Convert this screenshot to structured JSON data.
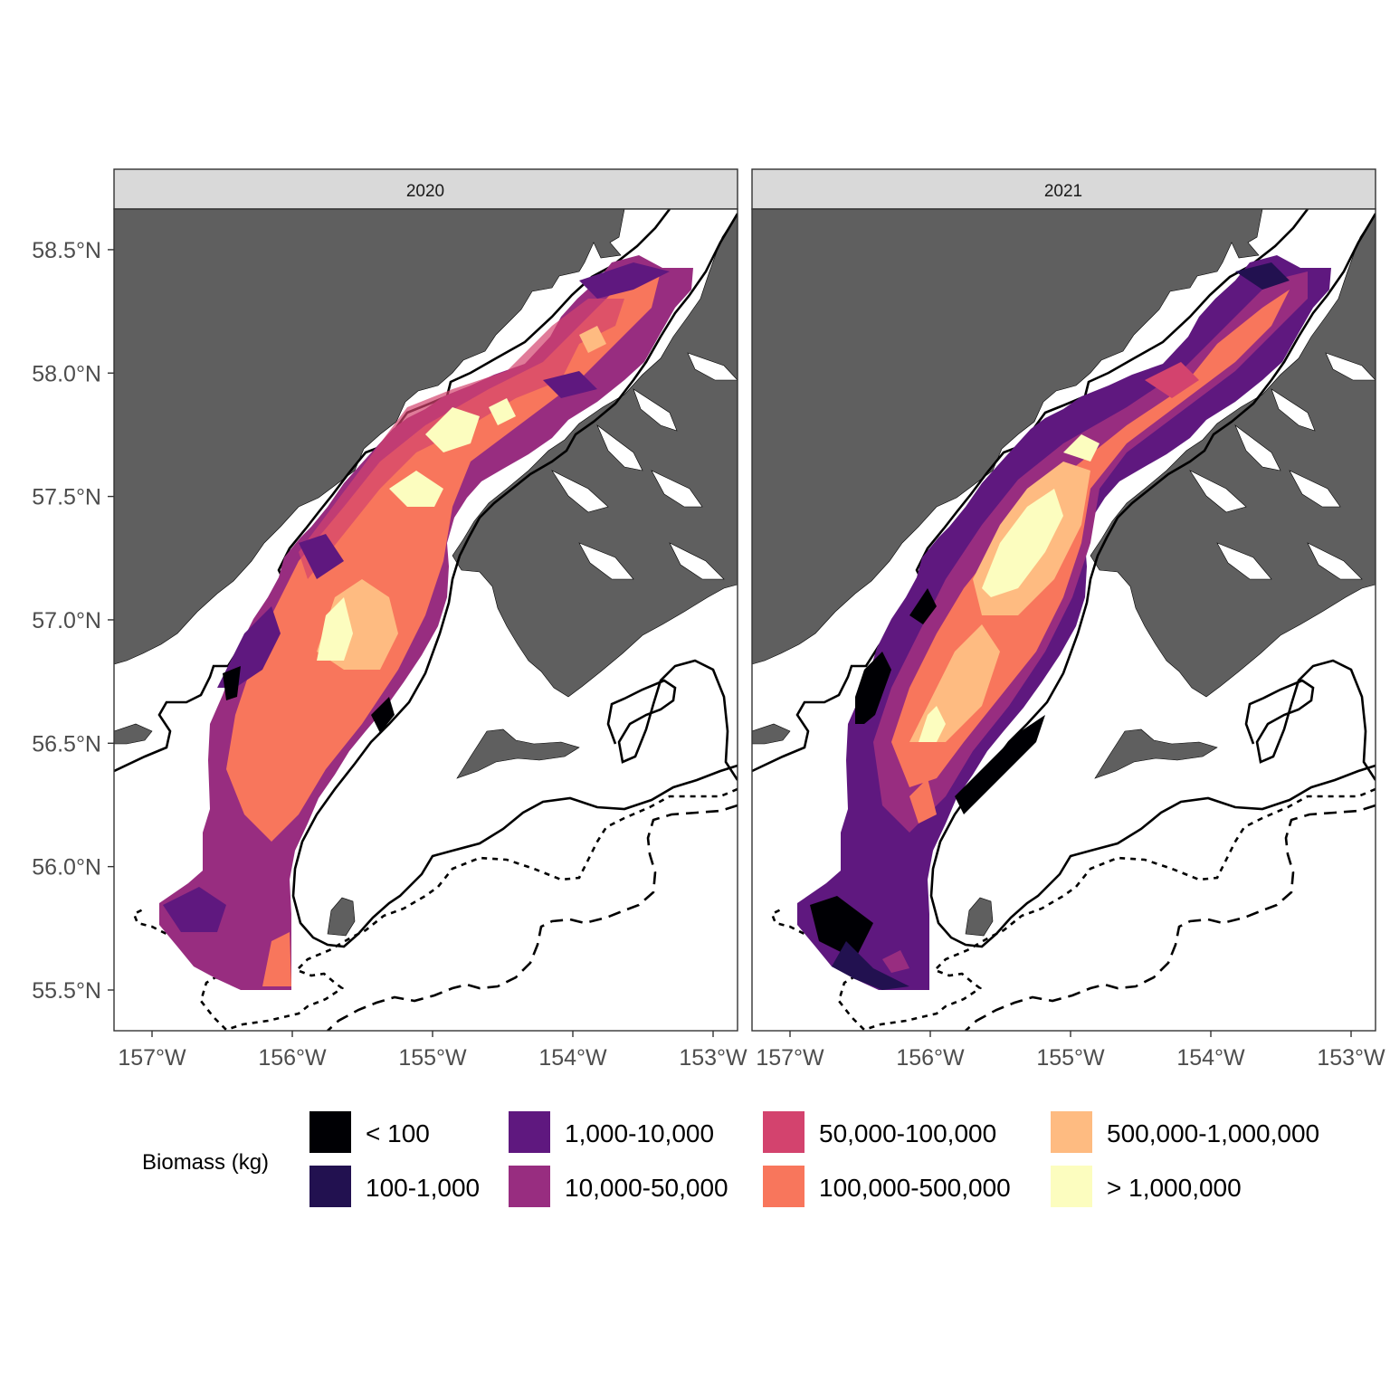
{
  "panels": [
    {
      "label": "2020"
    },
    {
      "label": "2021"
    }
  ],
  "axes": {
    "x_ticks": [
      "157°W",
      "156°W",
      "155°W",
      "154°W",
      "153°W"
    ],
    "x_values": [
      -157,
      -156,
      -155,
      -154,
      -153
    ],
    "y_ticks": [
      "58.5°N",
      "58.0°N",
      "57.5°N",
      "57.0°N",
      "56.5°N",
      "56.0°N",
      "55.5°N"
    ],
    "y_values": [
      58.5,
      58.0,
      57.5,
      57.0,
      56.5,
      56.0,
      55.5
    ]
  },
  "legend": {
    "title": "Biomass (kg)",
    "items": [
      {
        "label": "< 100",
        "color": "#000004"
      },
      {
        "label": "100-1,000",
        "color": "#221150"
      },
      {
        "label": "1,000-10,000",
        "color": "#5f187f"
      },
      {
        "label": "10,000-50,000",
        "color": "#982d80"
      },
      {
        "label": "50,000-100,000",
        "color": "#d3436e"
      },
      {
        "label": "100,000-500,000",
        "color": "#f8765c"
      },
      {
        "label": "500,000-1,000,000",
        "color": "#febb81"
      },
      {
        "label": "> 1,000,000",
        "color": "#fcfdbf"
      }
    ]
  },
  "colors": {
    "land": "#5f5f5f",
    "strip": "#d9d9d9",
    "border": "#333333"
  }
}
